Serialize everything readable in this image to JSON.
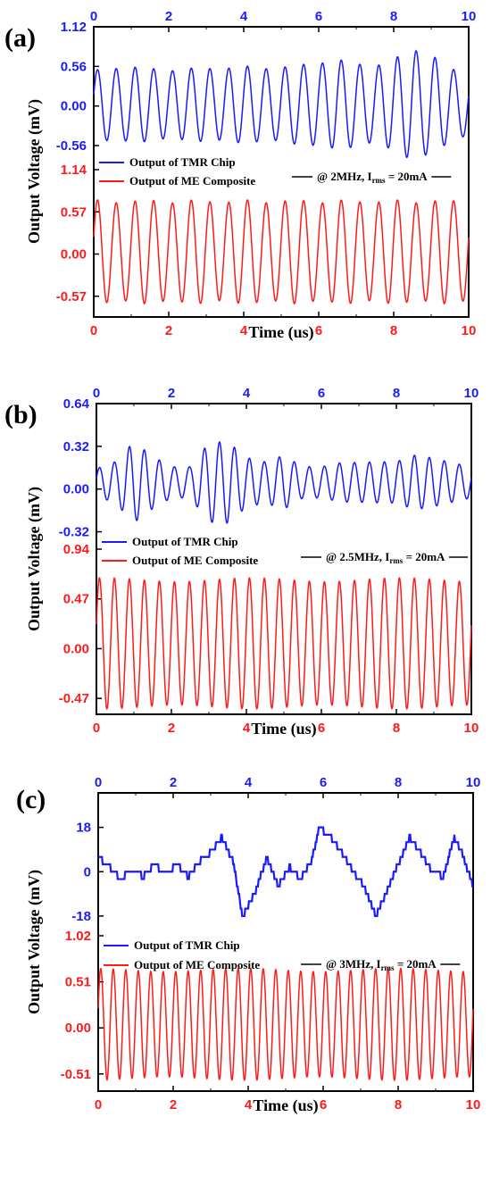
{
  "colors": {
    "tmr": "#1a1aff",
    "me": "#ff1a1a",
    "axis": "#000000"
  },
  "chart_data": [
    {
      "type": "line",
      "panel_label": "(a)",
      "xlabel": "Time (us)",
      "ylabel": "Output Voltage (mV)",
      "xlim": [
        0,
        10
      ],
      "x_ticks": [
        "0",
        "2",
        "4",
        "6",
        "8",
        "10"
      ],
      "note": "@ 2MHz, I",
      "note_sub": "rms",
      "note_tail": " = 20mA",
      "series": [
        {
          "name": "Output of TMR Chip",
          "color": "#1a1aff",
          "ylim": [
            -0.9,
            1.12
          ],
          "y_ticks": [
            "-0.56",
            "0.00",
            "0.56",
            "1.12"
          ],
          "freq_mhz": 2,
          "amplitude": 0.5,
          "offset": 0.02,
          "x": [
            0,
            0.5,
            1,
            1.5,
            2,
            2.5,
            3,
            3.5,
            4,
            4.5,
            5,
            5.5,
            6,
            6.5,
            7,
            7.5,
            8,
            8.5,
            9,
            9.5,
            10
          ],
          "envelope": [
            0.47,
            0.52,
            0.53,
            0.5,
            0.49,
            0.5,
            0.51,
            0.52,
            0.53,
            0.52,
            0.52,
            0.55,
            0.6,
            0.62,
            0.58,
            0.55,
            0.62,
            0.8,
            0.7,
            0.5,
            0.45
          ]
        },
        {
          "name": "Output of ME Composite",
          "color": "#ff1a1a",
          "ylim": [
            -0.85,
            1.14
          ],
          "y_ticks": [
            "-0.57",
            "0.00",
            "0.57",
            "1.14"
          ],
          "freq_mhz": 2,
          "amplitude": 0.68,
          "offset": 0.03,
          "x": [
            0,
            10
          ],
          "envelope": [
            0.68,
            0.68
          ]
        }
      ]
    },
    {
      "type": "line",
      "panel_label": "(b)",
      "xlabel": "Time (us)",
      "ylabel": "Output Voltage (mV)",
      "xlim": [
        0,
        10
      ],
      "x_ticks": [
        "0",
        "2",
        "4",
        "6",
        "8",
        "10"
      ],
      "note": "@ 2.5MHz, I",
      "note_sub": "rms",
      "note_tail": " = 20mA",
      "series": [
        {
          "name": "Output of TMR Chip",
          "color": "#1a1aff",
          "ylim": [
            -0.45,
            0.64
          ],
          "y_ticks": [
            "-0.32",
            "0.00",
            "0.32",
            "0.64"
          ],
          "freq_mhz": 2.5,
          "amplitude": 0.12,
          "offset": 0.05,
          "x": [
            0,
            0.5,
            1,
            1.5,
            2,
            2.5,
            3,
            3.5,
            4,
            4.5,
            5,
            5.5,
            6,
            6.5,
            7,
            7.5,
            8,
            8.5,
            9,
            9.5,
            10
          ],
          "envelope": [
            0.1,
            0.15,
            0.3,
            0.2,
            0.12,
            0.12,
            0.3,
            0.3,
            0.18,
            0.15,
            0.2,
            0.12,
            0.12,
            0.15,
            0.15,
            0.15,
            0.15,
            0.2,
            0.18,
            0.15,
            0.12
          ]
        },
        {
          "name": "Output of ME Composite",
          "color": "#ff1a1a",
          "ylim": [
            -0.62,
            0.94
          ],
          "y_ticks": [
            "-0.47",
            "0.00",
            "0.47",
            "0.94"
          ],
          "freq_mhz": 2.5,
          "amplitude": 0.6,
          "offset": 0.05,
          "x": [
            0,
            10
          ],
          "envelope": [
            0.6,
            0.6
          ]
        }
      ]
    },
    {
      "type": "line",
      "panel_label": "(c)",
      "xlabel": "Time (us)",
      "ylabel": "Output Voltage (mV)",
      "xlim": [
        0,
        10
      ],
      "x_ticks": [
        "0",
        "2",
        "4",
        "6",
        "8",
        "10"
      ],
      "note": "@ 3MHz, I",
      "note_sub": "rms",
      "note_tail": " = 20mA",
      "series": [
        {
          "name": "Output of TMR Chip",
          "color": "#1a1aff",
          "ylim": [
            -26,
            32
          ],
          "y_ticks": [
            "-18",
            "0",
            "18"
          ],
          "x": [
            0,
            0.3,
            0.6,
            0.9,
            1.2,
            1.5,
            1.8,
            2.1,
            2.4,
            2.7,
            3.0,
            3.3,
            3.6,
            3.85,
            4.2,
            4.5,
            4.8,
            5.1,
            5.4,
            5.7,
            5.9,
            6.2,
            6.5,
            6.8,
            7.1,
            7.4,
            7.7,
            8.0,
            8.3,
            8.6,
            8.9,
            9.2,
            9.5,
            9.7,
            10.0
          ],
          "y": [
            6,
            2,
            -3,
            1,
            -2,
            3,
            -1,
            3,
            -2,
            4,
            8,
            14,
            4,
            -18,
            -8,
            6,
            -6,
            2,
            -3,
            5,
            18,
            14,
            8,
            0,
            -6,
            -18,
            -8,
            3,
            14,
            8,
            0,
            -2,
            14,
            8,
            -6
          ]
        },
        {
          "name": "Output of ME Composite",
          "color": "#ff1a1a",
          "ylim": [
            -0.7,
            1.02
          ],
          "y_ticks": [
            "-0.51",
            "0.00",
            "0.51",
            "1.02"
          ],
          "freq_mhz": 3,
          "amplitude": 0.6,
          "offset": 0.04,
          "x": [
            0,
            10
          ],
          "envelope": [
            0.6,
            0.6
          ]
        }
      ]
    }
  ]
}
